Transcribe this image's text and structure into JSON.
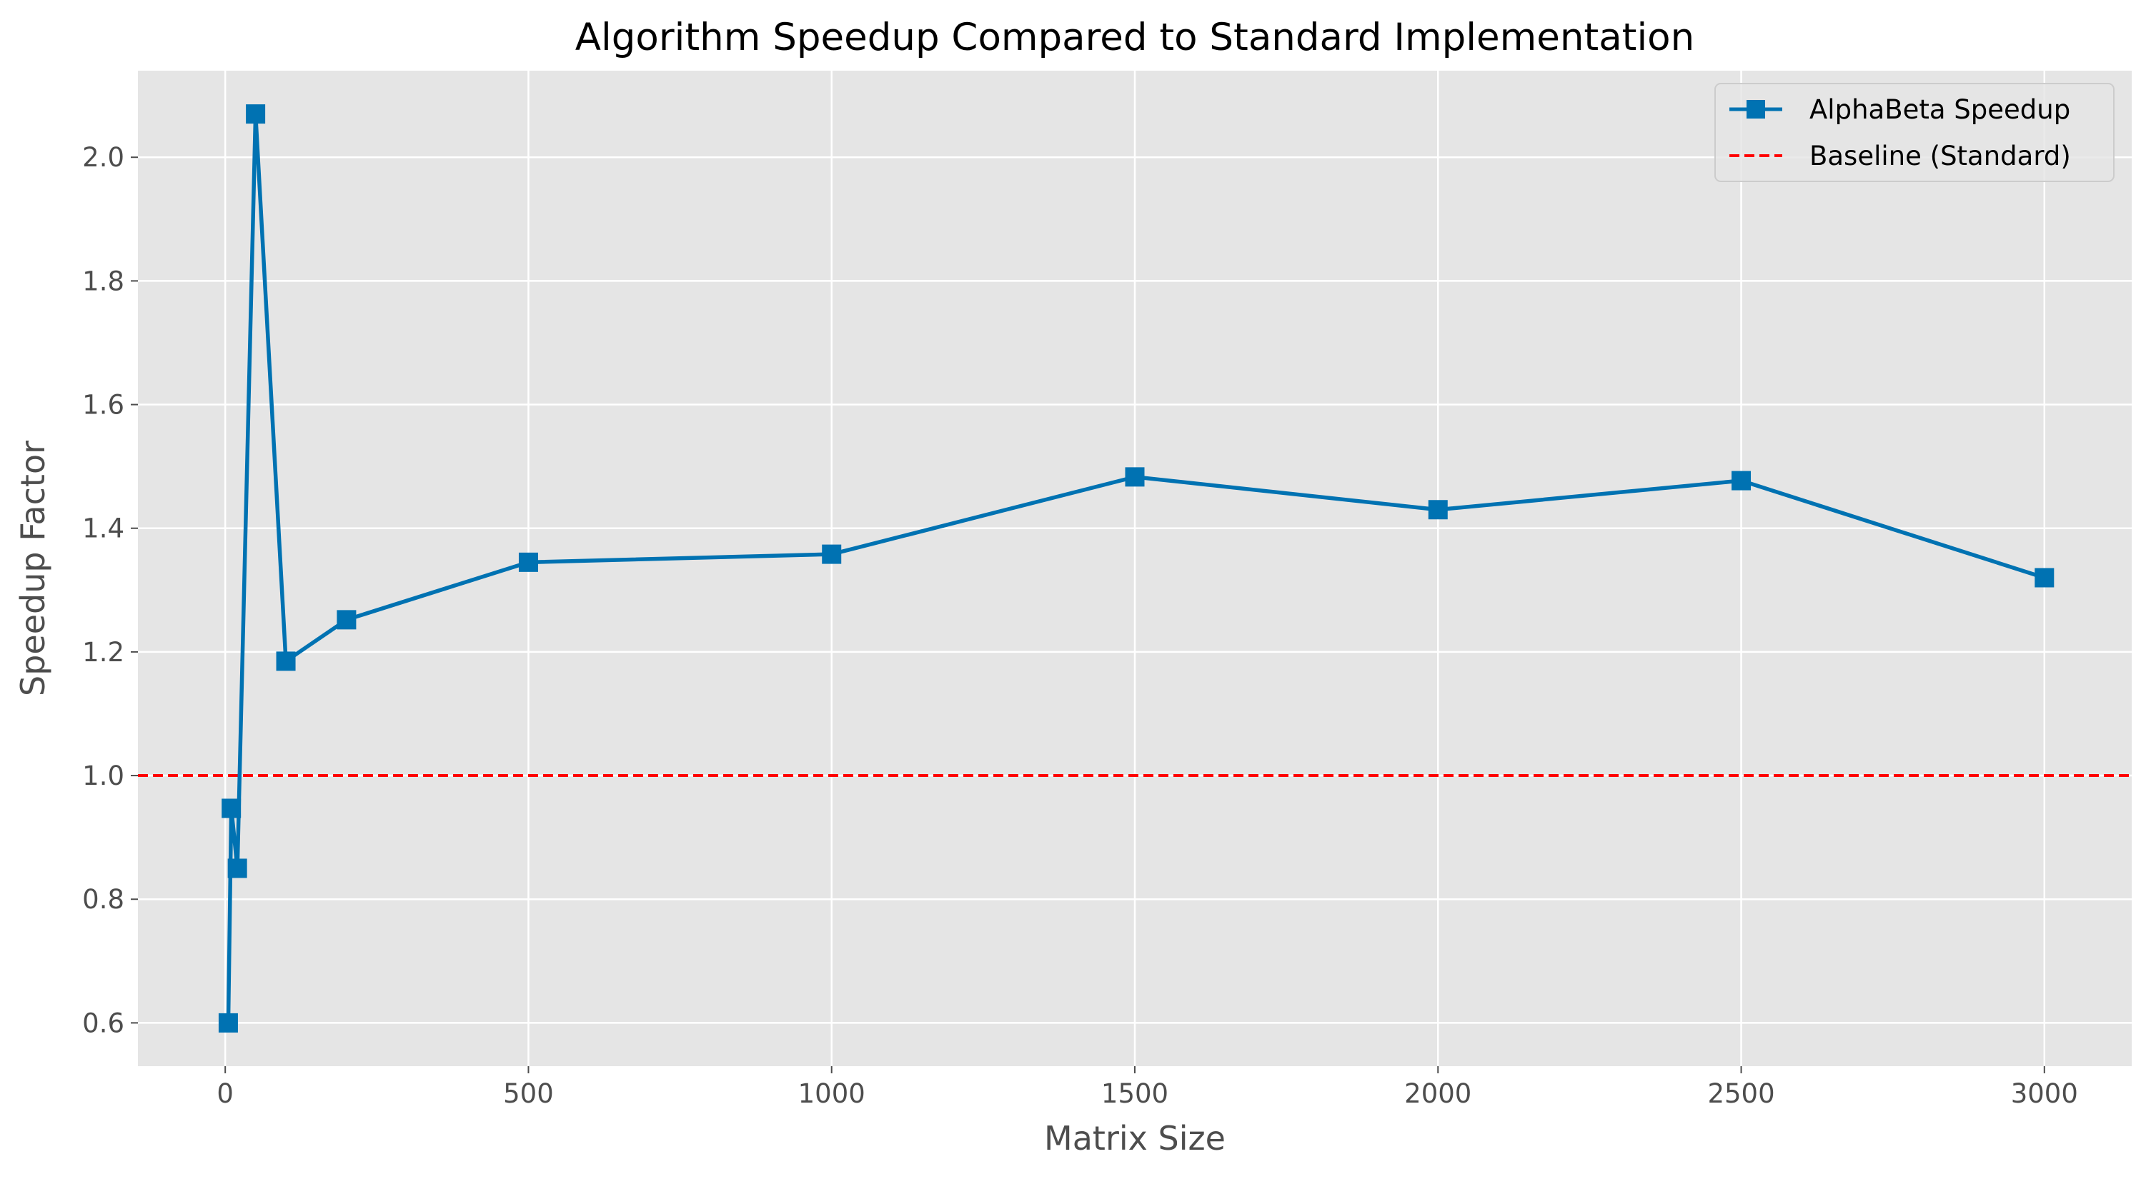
{
  "chart_data": {
    "type": "line",
    "title": "Algorithm Speedup Compared to Standard Implementation",
    "xlabel": "Matrix Size",
    "ylabel": "Speedup Factor",
    "xlim": [
      -144,
      3144
    ],
    "ylim": [
      0.53,
      2.14
    ],
    "xticks": [
      0,
      500,
      1000,
      1500,
      2000,
      2500,
      3000
    ],
    "yticks": [
      0.6,
      0.8,
      1.0,
      1.2,
      1.4,
      1.6,
      1.8,
      2.0
    ],
    "xtick_labels": [
      "0",
      "500",
      "1000",
      "1500",
      "2000",
      "2500",
      "3000"
    ],
    "ytick_labels": [
      "0.6",
      "0.8",
      "1.0",
      "1.2",
      "1.4",
      "1.6",
      "1.8",
      "2.0"
    ],
    "grid": true,
    "legend_position": "top-right",
    "series": [
      {
        "name": "AlphaBeta Speedup",
        "color": "#0072b2",
        "marker": "square",
        "line_style": "solid",
        "x": [
          5,
          10,
          20,
          50,
          100,
          200,
          500,
          1000,
          1500,
          2000,
          2500,
          3000
        ],
        "y": [
          0.6,
          0.947,
          0.85,
          2.07,
          1.185,
          1.252,
          1.345,
          1.358,
          1.483,
          1.43,
          1.477,
          1.32
        ]
      }
    ],
    "reference_lines": [
      {
        "name": "Baseline (Standard)",
        "color": "#ff0000",
        "line_style": "dashed",
        "y": 1.0
      }
    ],
    "colors": {
      "plot_background": "#e5e5e5",
      "grid": "#ffffff",
      "text": "#4d4d4d"
    }
  }
}
